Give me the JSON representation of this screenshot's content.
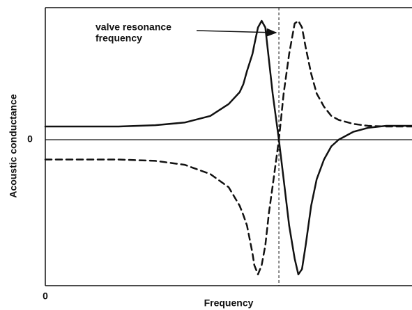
{
  "chart_data": {
    "type": "line",
    "xlabel": "Frequency",
    "ylabel": "Acoustic conductance",
    "annotation": [
      "valve resonance",
      "frequency"
    ],
    "resonance_x": 63.7,
    "xlim": [
      0,
      100
    ],
    "ylim": [
      -11,
      10
    ],
    "xticks": [
      0
    ],
    "yticks": [
      0
    ],
    "x": [
      0,
      20,
      30,
      38,
      45,
      50,
      53,
      54,
      55,
      56.5,
      57,
      58,
      59,
      60,
      61,
      62,
      63.7,
      65,
      66.5,
      68,
      69,
      70,
      71,
      72.5,
      74,
      76,
      78,
      80,
      84,
      88,
      93,
      97,
      100
    ],
    "series": [
      {
        "color": "#111111",
        "style": "solid",
        "values": [
          1.0,
          1.0,
          1.1,
          1.3,
          1.8,
          2.7,
          3.6,
          4.2,
          5.2,
          6.5,
          7.2,
          8.5,
          9.0,
          8.5,
          6.0,
          3.5,
          0,
          -3.0,
          -6.5,
          -9.0,
          -10.2,
          -9.8,
          -8.0,
          -5.0,
          -3.0,
          -1.5,
          -0.5,
          0,
          0.6,
          0.9,
          1.05,
          1.05,
          1.05
        ]
      },
      {
        "color": "#111111",
        "style": "dashed",
        "values": [
          -1.5,
          -1.5,
          -1.6,
          -1.9,
          -2.6,
          -3.6,
          -5.0,
          -5.7,
          -6.5,
          -8.6,
          -9.5,
          -10.2,
          -9.5,
          -8.0,
          -5.5,
          -3.5,
          0,
          3.5,
          6.5,
          8.8,
          9.0,
          8.5,
          7.0,
          5.0,
          3.5,
          2.5,
          1.8,
          1.5,
          1.2,
          1.05,
          1.0,
          1.0,
          1.0
        ]
      }
    ]
  }
}
